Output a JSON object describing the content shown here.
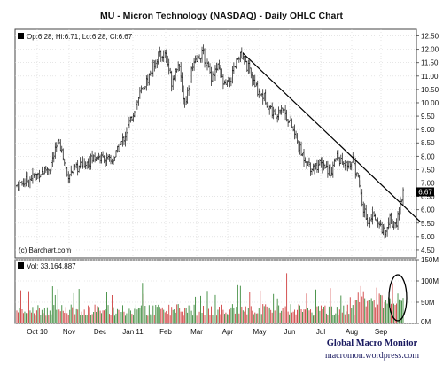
{
  "chart_data": {
    "type": "ohlc",
    "title": "MU - Micron Technology (NASDAQ) - Daily OHLC Chart",
    "legend_text": "Op:6.28, Hi:6.71, Lo:6.28, Cl:6.67",
    "last_close_label": "6.67",
    "credit": "(c) Barchart.com",
    "price_axis": {
      "ylim": [
        4.2,
        12.75
      ],
      "ticks": [
        "12.50",
        "12.00",
        "11.50",
        "11.00",
        "10.50",
        "10.00",
        "9.50",
        "9.00",
        "8.50",
        "8.00",
        "7.50",
        "7.00",
        "6.50",
        "6.00",
        "5.50",
        "5.00",
        "4.50"
      ]
    },
    "x_axis": {
      "ticks": [
        "Oct 10",
        "Nov",
        "Dec",
        "Jan 11",
        "Feb",
        "Mar",
        "Apr",
        "May",
        "Jun",
        "Jul",
        "Aug",
        "Sep"
      ]
    },
    "price_knots": [
      [
        0,
        6.9
      ],
      [
        15,
        7.3
      ],
      [
        25,
        7.6
      ],
      [
        32,
        8.6
      ],
      [
        38,
        7.3
      ],
      [
        50,
        7.7
      ],
      [
        60,
        8.0
      ],
      [
        72,
        7.8
      ],
      [
        82,
        8.8
      ],
      [
        92,
        10.2
      ],
      [
        100,
        11.0
      ],
      [
        105,
        11.6
      ],
      [
        112,
        11.9
      ],
      [
        117,
        10.8
      ],
      [
        122,
        11.5
      ],
      [
        127,
        9.9
      ],
      [
        132,
        11.2
      ],
      [
        140,
        11.9
      ],
      [
        147,
        11.0
      ],
      [
        152,
        11.3
      ],
      [
        157,
        10.6
      ],
      [
        162,
        10.9
      ],
      [
        168,
        11.8
      ],
      [
        175,
        11.3
      ],
      [
        180,
        10.6
      ],
      [
        187,
        10.2
      ],
      [
        195,
        9.5
      ],
      [
        200,
        9.9
      ],
      [
        208,
        9.1
      ],
      [
        215,
        8.1
      ],
      [
        222,
        7.6
      ],
      [
        232,
        7.7
      ],
      [
        237,
        7.4
      ],
      [
        242,
        8.0
      ],
      [
        248,
        7.6
      ],
      [
        254,
        7.8
      ],
      [
        258,
        7.1
      ],
      [
        262,
        6.0
      ],
      [
        266,
        5.6
      ],
      [
        270,
        5.9
      ],
      [
        274,
        5.4
      ],
      [
        278,
        5.2
      ],
      [
        282,
        5.8
      ],
      [
        286,
        5.3
      ],
      [
        289,
        6.1
      ],
      [
        292,
        6.67
      ]
    ],
    "trendline": {
      "from": [
        171,
        11.85
      ],
      "to": [
        305,
        5.55
      ]
    },
    "volume": {
      "legend_text": "Vol: 33,164,887",
      "ylim": [
        0,
        150
      ],
      "ticks": [
        "150M",
        "100M",
        "50M",
        "0M"
      ]
    },
    "annotation_circle": "around the last volume bars"
  },
  "watermark": {
    "line1": "Global Macro Monitor",
    "line2": "macromon.wordpress.com"
  }
}
